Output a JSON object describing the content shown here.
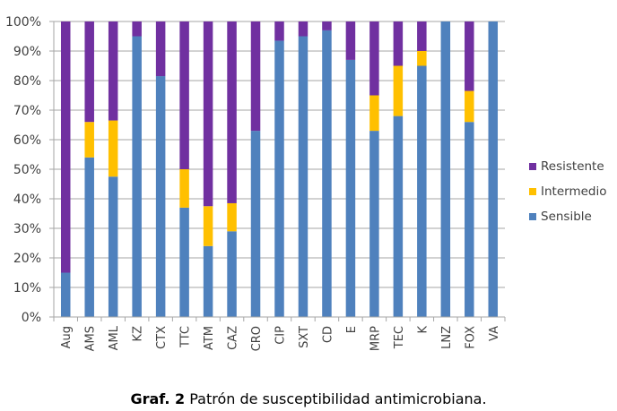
{
  "chart_data": {
    "type": "bar",
    "stacked": true,
    "percent": true,
    "title": "",
    "xlabel": "",
    "ylabel": "",
    "ylim": [
      0,
      100
    ],
    "yticks": [
      "0%",
      "10%",
      "20%",
      "30%",
      "40%",
      "50%",
      "60%",
      "70%",
      "80%",
      "90%",
      "100%"
    ],
    "grid": true,
    "legend_position": "right",
    "categories": [
      "Aug",
      "AMS",
      "AML",
      "KZ",
      "CTX",
      "TTC",
      "ATM",
      "CAZ",
      "CRO",
      "CIP",
      "SXT",
      "CD",
      "E",
      "MRP",
      "TEC",
      "K",
      "LNZ",
      "FOX",
      "VA"
    ],
    "series": [
      {
        "name": "Sensible",
        "color": "#4f81bd",
        "values": [
          15,
          54,
          47.5,
          95,
          81.5,
          37,
          24,
          29,
          63,
          93.5,
          95,
          97,
          87,
          63,
          68,
          85,
          100,
          66,
          100
        ]
      },
      {
        "name": "Intermedio",
        "color": "#ffc000",
        "values": [
          0,
          12,
          19,
          0,
          0,
          13,
          13.5,
          9.5,
          0,
          0,
          0,
          0,
          0,
          12,
          17,
          5,
          0,
          10.5,
          0
        ]
      },
      {
        "name": "Resistente",
        "color": "#7030a0",
        "values": [
          85,
          34,
          33.5,
          5,
          18.5,
          50,
          62.5,
          61.5,
          37,
          6.5,
          5,
          3,
          13,
          25,
          15,
          10,
          0,
          23.5,
          0
        ]
      }
    ],
    "legend": [
      "Resistente",
      "Intermedio",
      "Sensible"
    ]
  },
  "caption": {
    "label": "Graf. 2",
    "text": " Patrón de susceptibilidad antimicrobiana."
  }
}
